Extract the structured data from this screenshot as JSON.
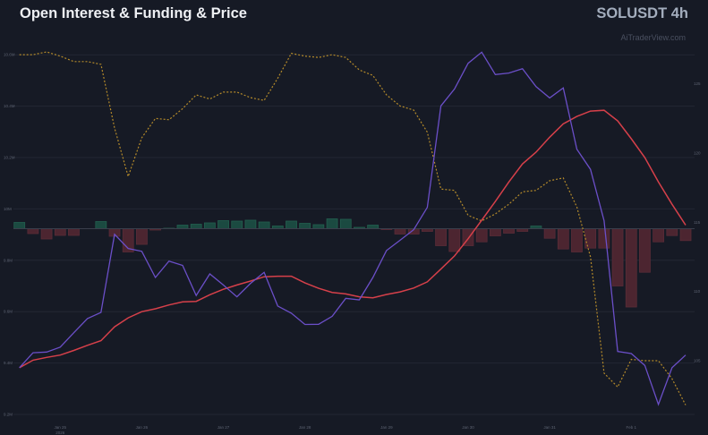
{
  "header": {
    "title": "Open Interest & Funding & Price",
    "symbol": "SOLUSDT 4h",
    "watermark": "AiTraderView.com"
  },
  "chart_data": {
    "type": "line",
    "title": "Open Interest & Funding & Price",
    "x_labels": [
      {
        "index": 3,
        "label": "Jan 25",
        "sub": "2026"
      },
      {
        "index": 9,
        "label": "Jan 26"
      },
      {
        "index": 15,
        "label": "Jan 27"
      },
      {
        "index": 21,
        "label": "Jan 28"
      },
      {
        "index": 27,
        "label": "Jan 29"
      },
      {
        "index": 33,
        "label": "Jan 30"
      },
      {
        "index": 39,
        "label": "Jan 31"
      },
      {
        "index": 45,
        "label": "Feb 1"
      }
    ],
    "left_axis": {
      "ticks": [
        "10.6M",
        "10.4M",
        "10.2M",
        "10M",
        "9.8M",
        "9.6M",
        "9.4M",
        "9.2M"
      ],
      "tick_values": [
        10.6,
        10.4,
        10.2,
        10.0,
        9.8,
        9.6,
        9.4,
        9.2
      ],
      "range": [
        9.2,
        10.6
      ],
      "unit": "M"
    },
    "right_axis": {
      "ticks": [
        "125",
        "120",
        "115",
        "110",
        "105"
      ],
      "tick_values": [
        125,
        120,
        115,
        110,
        105
      ]
    },
    "grid": true,
    "colors": {
      "oi": "#6b4fc8",
      "oi_ma": "#d6404a",
      "price": "#b48a2a",
      "funding_pos": "#1b4a41",
      "funding_neg": "#4c2530"
    },
    "series": {
      "oi": [
        9.382,
        9.44,
        9.443,
        9.462,
        9.518,
        9.573,
        9.597,
        9.901,
        9.846,
        9.835,
        9.733,
        9.797,
        9.78,
        9.663,
        9.747,
        9.704,
        9.658,
        9.71,
        9.753,
        9.622,
        9.594,
        9.55,
        9.551,
        9.582,
        9.652,
        9.646,
        9.733,
        9.838,
        9.878,
        9.919,
        10.006,
        10.401,
        10.467,
        10.567,
        10.61,
        10.523,
        10.529,
        10.546,
        10.476,
        10.432,
        10.471,
        10.232,
        10.154,
        9.954,
        9.445,
        9.437,
        9.391,
        9.239,
        9.382,
        9.431
      ],
      "oi_ma": [
        9.382,
        9.411,
        9.422,
        9.431,
        9.449,
        9.469,
        9.487,
        9.541,
        9.576,
        9.6,
        9.611,
        9.626,
        9.638,
        9.64,
        9.666,
        9.687,
        9.704,
        9.719,
        9.736,
        9.738,
        9.738,
        9.712,
        9.691,
        9.675,
        9.669,
        9.658,
        9.654,
        9.667,
        9.677,
        9.692,
        9.716,
        9.766,
        9.817,
        9.884,
        9.956,
        10.029,
        10.105,
        10.175,
        10.221,
        10.279,
        10.331,
        10.36,
        10.381,
        10.384,
        10.343,
        10.273,
        10.2,
        10.105,
        10.018,
        9.937
      ],
      "price": [
        127.1,
        127.1,
        127.3,
        127.0,
        126.6,
        126.6,
        126.4,
        121.8,
        118.3,
        121.1,
        122.5,
        122.4,
        123.2,
        124.2,
        123.9,
        124.4,
        124.4,
        124.0,
        123.8,
        125.4,
        127.2,
        127.0,
        126.9,
        127.1,
        126.9,
        126.0,
        125.6,
        124.2,
        123.4,
        123.1,
        121.5,
        117.4,
        117.3,
        115.5,
        115.1,
        115.6,
        116.3,
        117.2,
        117.3,
        118.0,
        118.2,
        116.1,
        112.5,
        104.1,
        103.1,
        105.1,
        105.0,
        105.0,
        103.7,
        101.8
      ],
      "funding_pct": [
        0.007,
        -0.0055,
        -0.0115,
        -0.0075,
        -0.0075,
        0,
        0.008,
        -0.0085,
        -0.026,
        -0.0175,
        -0.0015,
        0.0005,
        0.004,
        0.005,
        0.0065,
        0.009,
        0.0085,
        0.0095,
        0.0075,
        0.003,
        0.0085,
        0.006,
        0.0045,
        0.011,
        0.0105,
        0.0015,
        0.004,
        -0.001,
        -0.006,
        -0.006,
        -0.003,
        -0.019,
        -0.0255,
        -0.019,
        -0.0147,
        -0.008,
        -0.005,
        -0.003,
        0.003,
        -0.0107,
        -0.0227,
        -0.026,
        -0.0217,
        -0.0217,
        -0.064,
        -0.0875,
        -0.0487,
        -0.0147,
        -0.0077,
        -0.0133
      ]
    }
  }
}
